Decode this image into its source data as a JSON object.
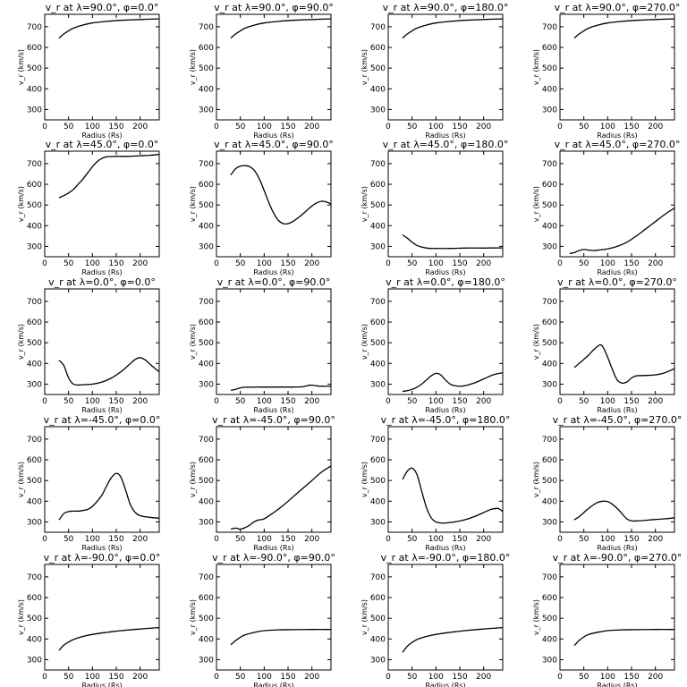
{
  "chart_data": [
    {
      "type": "line",
      "title": "v_r at λ=90.0°, φ=0.0°",
      "xlabel": "Radius (Rs)",
      "ylabel": "v_r (km/s)",
      "xlim": [
        0,
        240
      ],
      "ylim": [
        250,
        760
      ],
      "xticks": [
        0,
        50,
        100,
        150,
        200
      ],
      "yticks": [
        300,
        400,
        500,
        600,
        700
      ],
      "x": [
        30,
        40,
        50,
        60,
        80,
        100,
        130,
        160,
        200,
        240
      ],
      "y": [
        645,
        665,
        680,
        693,
        708,
        718,
        726,
        731,
        735,
        738
      ]
    },
    {
      "type": "line",
      "title": "v_r at λ=90.0°, φ=90.0°",
      "xlabel": "Radius (Rs)",
      "ylabel": "v_r (km/s)",
      "xlim": [
        0,
        240
      ],
      "ylim": [
        250,
        760
      ],
      "xticks": [
        0,
        50,
        100,
        150,
        200
      ],
      "yticks": [
        300,
        400,
        500,
        600,
        700
      ],
      "x": [
        30,
        40,
        50,
        60,
        80,
        100,
        130,
        160,
        200,
        240
      ],
      "y": [
        645,
        665,
        680,
        693,
        708,
        718,
        726,
        731,
        735,
        738
      ]
    },
    {
      "type": "line",
      "title": "v_r at λ=90.0°, φ=180.0°",
      "xlabel": "Radius (Rs)",
      "ylabel": "v_r (km/s)",
      "xlim": [
        0,
        240
      ],
      "ylim": [
        250,
        760
      ],
      "xticks": [
        0,
        50,
        100,
        150,
        200
      ],
      "yticks": [
        300,
        400,
        500,
        600,
        700
      ],
      "x": [
        30,
        40,
        50,
        60,
        80,
        100,
        130,
        160,
        200,
        240
      ],
      "y": [
        645,
        665,
        680,
        693,
        708,
        718,
        726,
        731,
        735,
        738
      ]
    },
    {
      "type": "line",
      "title": "v_r at λ=90.0°, φ=270.0°",
      "xlabel": "Radius (Rs)",
      "ylabel": "v_r (km/s)",
      "xlim": [
        0,
        240
      ],
      "ylim": [
        250,
        760
      ],
      "xticks": [
        0,
        50,
        100,
        150,
        200
      ],
      "yticks": [
        300,
        400,
        500,
        600,
        700
      ],
      "x": [
        30,
        40,
        50,
        60,
        80,
        100,
        130,
        160,
        200,
        240
      ],
      "y": [
        645,
        665,
        680,
        693,
        708,
        718,
        726,
        731,
        735,
        738
      ]
    },
    {
      "type": "line",
      "title": "v_r at λ=45.0°, φ=0.0°",
      "xlabel": "Radius (Rs)",
      "ylabel": "v_r (km/s)",
      "xlim": [
        0,
        240
      ],
      "ylim": [
        250,
        760
      ],
      "xticks": [
        0,
        50,
        100,
        150,
        200
      ],
      "yticks": [
        300,
        400,
        500,
        600,
        700
      ],
      "x": [
        30,
        40,
        50,
        60,
        70,
        80,
        90,
        100,
        110,
        120,
        130,
        150,
        175,
        200,
        220,
        240
      ],
      "y": [
        535,
        545,
        558,
        575,
        600,
        625,
        655,
        685,
        710,
        725,
        733,
        735,
        735,
        738,
        740,
        745
      ]
    },
    {
      "type": "line",
      "title": "v_r at λ=45.0°, φ=90.0°",
      "xlabel": "Radius (Rs)",
      "ylabel": "v_r (km/s)",
      "xlim": [
        0,
        240
      ],
      "ylim": [
        250,
        760
      ],
      "xticks": [
        0,
        50,
        100,
        150,
        200
      ],
      "yticks": [
        300,
        400,
        500,
        600,
        700
      ],
      "x": [
        30,
        40,
        50,
        60,
        70,
        80,
        90,
        100,
        110,
        120,
        130,
        140,
        150,
        160,
        175,
        190,
        200,
        210,
        220,
        230,
        240
      ],
      "y": [
        645,
        675,
        688,
        690,
        685,
        665,
        625,
        570,
        510,
        460,
        425,
        410,
        410,
        420,
        445,
        475,
        495,
        510,
        518,
        515,
        505
      ]
    },
    {
      "type": "line",
      "title": "v_r at λ=45.0°, φ=180.0°",
      "xlabel": "Radius (Rs)",
      "ylabel": "v_r (km/s)",
      "xlim": [
        0,
        240
      ],
      "ylim": [
        250,
        760
      ],
      "xticks": [
        0,
        50,
        100,
        150,
        200
      ],
      "yticks": [
        300,
        400,
        500,
        600,
        700
      ],
      "x": [
        30,
        40,
        50,
        60,
        70,
        80,
        90,
        100,
        130,
        160,
        200,
        240
      ],
      "y": [
        355,
        340,
        320,
        305,
        297,
        292,
        290,
        290,
        290,
        292,
        292,
        293
      ]
    },
    {
      "type": "line",
      "title": "v_r at λ=45.0°, φ=270.0°",
      "xlabel": "Radius (Rs)",
      "ylabel": "v_r (km/s)",
      "xlim": [
        0,
        240
      ],
      "ylim": [
        250,
        760
      ],
      "xticks": [
        0,
        50,
        100,
        150,
        200
      ],
      "yticks": [
        300,
        400,
        500,
        600,
        700
      ],
      "x": [
        20,
        30,
        40,
        50,
        60,
        70,
        80,
        100,
        120,
        140,
        160,
        180,
        200,
        220,
        240
      ],
      "y": [
        265,
        270,
        280,
        285,
        282,
        280,
        282,
        288,
        300,
        320,
        350,
        385,
        420,
        455,
        485
      ]
    },
    {
      "type": "line",
      "title": "v_r at λ=0.0°, φ=0.0°",
      "xlabel": "Radius (Rs)",
      "ylabel": "v_r (km/s)",
      "xlim": [
        0,
        240
      ],
      "ylim": [
        250,
        760
      ],
      "xticks": [
        0,
        50,
        100,
        150,
        200
      ],
      "yticks": [
        300,
        400,
        500,
        600,
        700
      ],
      "x": [
        30,
        40,
        50,
        60,
        70,
        80,
        100,
        120,
        140,
        160,
        175,
        190,
        200,
        210,
        220,
        230,
        240
      ],
      "y": [
        415,
        390,
        330,
        300,
        296,
        297,
        300,
        310,
        330,
        360,
        390,
        420,
        428,
        418,
        398,
        378,
        360
      ]
    },
    {
      "type": "line",
      "title": "v_r at λ=0.0°, φ=90.0°",
      "xlabel": "Radius (Rs)",
      "ylabel": "v_r (km/s)",
      "xlim": [
        0,
        240
      ],
      "ylim": [
        250,
        760
      ],
      "xticks": [
        0,
        50,
        100,
        150,
        200
      ],
      "yticks": [
        300,
        400,
        500,
        600,
        700
      ],
      "x": [
        30,
        40,
        50,
        60,
        80,
        100,
        130,
        160,
        180,
        190,
        200,
        210,
        220,
        240
      ],
      "y": [
        270,
        275,
        282,
        285,
        286,
        286,
        286,
        286,
        287,
        293,
        295,
        292,
        290,
        290
      ]
    },
    {
      "type": "line",
      "title": "v_r at λ=0.0°, φ=180.0°",
      "xlabel": "Radius (Rs)",
      "ylabel": "v_r (km/s)",
      "xlim": [
        0,
        240
      ],
      "ylim": [
        250,
        760
      ],
      "xticks": [
        0,
        50,
        100,
        150,
        200
      ],
      "yticks": [
        300,
        400,
        500,
        600,
        700
      ],
      "x": [
        30,
        40,
        50,
        60,
        70,
        80,
        90,
        100,
        110,
        120,
        130,
        140,
        150,
        160,
        180,
        200,
        220,
        240
      ],
      "y": [
        265,
        268,
        275,
        285,
        300,
        320,
        340,
        352,
        345,
        320,
        300,
        292,
        290,
        292,
        305,
        325,
        345,
        355
      ]
    },
    {
      "type": "line",
      "title": "v_r at λ=0.0°, φ=270.0°",
      "xlabel": "Radius (Rs)",
      "ylabel": "v_r (km/s)",
      "xlim": [
        0,
        240
      ],
      "ylim": [
        250,
        760
      ],
      "xticks": [
        0,
        50,
        100,
        150,
        200
      ],
      "yticks": [
        300,
        400,
        500,
        600,
        700
      ],
      "x": [
        30,
        40,
        50,
        60,
        70,
        80,
        85,
        90,
        100,
        110,
        120,
        130,
        140,
        150,
        160,
        180,
        200,
        220,
        240
      ],
      "y": [
        380,
        400,
        420,
        440,
        465,
        485,
        490,
        480,
        430,
        370,
        320,
        305,
        310,
        330,
        340,
        342,
        345,
        355,
        375
      ]
    },
    {
      "type": "line",
      "title": "v_r at λ=-45.0°, φ=0.0°",
      "xlabel": "Radius (Rs)",
      "ylabel": "v_r (km/s)",
      "xlim": [
        0,
        240
      ],
      "ylim": [
        250,
        760
      ],
      "xticks": [
        0,
        50,
        100,
        150,
        200
      ],
      "yticks": [
        300,
        400,
        500,
        600,
        700
      ],
      "x": [
        30,
        40,
        50,
        60,
        70,
        80,
        90,
        100,
        110,
        120,
        130,
        140,
        150,
        160,
        170,
        180,
        190,
        200,
        220,
        240
      ],
      "y": [
        310,
        340,
        350,
        352,
        352,
        355,
        360,
        375,
        400,
        430,
        475,
        515,
        535,
        515,
        450,
        380,
        345,
        330,
        322,
        318
      ]
    },
    {
      "type": "line",
      "title": "v_r at λ=-45.0°, φ=90.0°",
      "xlabel": "Radius (Rs)",
      "ylabel": "v_r (km/s)",
      "xlim": [
        0,
        240
      ],
      "ylim": [
        250,
        760
      ],
      "xticks": [
        0,
        50,
        100,
        150,
        200
      ],
      "yticks": [
        300,
        400,
        500,
        600,
        700
      ],
      "x": [
        30,
        40,
        50,
        60,
        70,
        80,
        90,
        100,
        120,
        140,
        160,
        180,
        200,
        220,
        240
      ],
      "y": [
        265,
        270,
        265,
        272,
        285,
        302,
        310,
        315,
        345,
        380,
        420,
        460,
        500,
        540,
        570
      ]
    },
    {
      "type": "line",
      "title": "v_r at λ=-45.0°, φ=180.0°",
      "xlabel": "Radius (Rs)",
      "ylabel": "v_r (km/s)",
      "xlim": [
        0,
        240
      ],
      "ylim": [
        250,
        760
      ],
      "xticks": [
        0,
        50,
        100,
        150,
        200
      ],
      "yticks": [
        300,
        400,
        500,
        600,
        700
      ],
      "x": [
        30,
        40,
        50,
        60,
        70,
        80,
        90,
        100,
        110,
        120,
        140,
        160,
        180,
        200,
        215,
        230,
        240
      ],
      "y": [
        505,
        545,
        560,
        530,
        450,
        370,
        320,
        300,
        295,
        295,
        300,
        310,
        325,
        345,
        360,
        365,
        350
      ]
    },
    {
      "type": "line",
      "title": "v_r at λ=-45.0°, φ=270.0°",
      "xlabel": "Radius (Rs)",
      "ylabel": "v_r (km/s)",
      "xlim": [
        0,
        240
      ],
      "ylim": [
        250,
        760
      ],
      "xticks": [
        0,
        50,
        100,
        150,
        200
      ],
      "yticks": [
        300,
        400,
        500,
        600,
        700
      ],
      "x": [
        30,
        40,
        50,
        60,
        70,
        80,
        90,
        100,
        110,
        120,
        130,
        140,
        150,
        160,
        180,
        200,
        220,
        240
      ],
      "y": [
        310,
        325,
        345,
        365,
        382,
        395,
        400,
        398,
        385,
        365,
        340,
        315,
        305,
        305,
        308,
        312,
        315,
        320
      ]
    },
    {
      "type": "line",
      "title": "v_r at λ=-90.0°, φ=0.0°",
      "xlabel": "Radius (Rs)",
      "ylabel": "v_r (km/s)",
      "xlim": [
        0,
        240
      ],
      "ylim": [
        250,
        760
      ],
      "xticks": [
        0,
        50,
        100,
        150,
        200
      ],
      "yticks": [
        300,
        400,
        500,
        600,
        700
      ],
      "x": [
        30,
        40,
        50,
        60,
        80,
        100,
        130,
        160,
        200,
        240
      ],
      "y": [
        345,
        370,
        385,
        397,
        412,
        422,
        432,
        440,
        448,
        455
      ]
    },
    {
      "type": "line",
      "title": "v_r at λ=-90.0°, φ=90.0°",
      "xlabel": "Radius (Rs)",
      "ylabel": "v_r (km/s)",
      "xlim": [
        0,
        240
      ],
      "ylim": [
        250,
        760
      ],
      "xticks": [
        0,
        50,
        100,
        150,
        200
      ],
      "yticks": [
        300,
        400,
        500,
        600,
        700
      ],
      "x": [
        30,
        40,
        50,
        60,
        80,
        100,
        130,
        160,
        200,
        240
      ],
      "y": [
        372,
        392,
        408,
        420,
        432,
        440,
        444,
        445,
        446,
        446
      ]
    },
    {
      "type": "line",
      "title": "v_r at λ=-90.0°, φ=180.0°",
      "xlabel": "Radius (Rs)",
      "ylabel": "v_r (km/s)",
      "xlim": [
        0,
        240
      ],
      "ylim": [
        250,
        760
      ],
      "xticks": [
        0,
        50,
        100,
        150,
        200
      ],
      "yticks": [
        300,
        400,
        500,
        600,
        700
      ],
      "x": [
        30,
        40,
        50,
        60,
        80,
        100,
        130,
        160,
        200,
        240
      ],
      "y": [
        335,
        365,
        383,
        397,
        412,
        422,
        432,
        440,
        448,
        455
      ]
    },
    {
      "type": "line",
      "title": "v_r at λ=-90.0°, φ=270.0°",
      "xlabel": "Radius (Rs)",
      "ylabel": "v_r (km/s)",
      "xlim": [
        0,
        240
      ],
      "ylim": [
        250,
        760
      ],
      "xticks": [
        0,
        50,
        100,
        150,
        200
      ],
      "yticks": [
        300,
        400,
        500,
        600,
        700
      ],
      "x": [
        30,
        40,
        50,
        60,
        80,
        100,
        130,
        160,
        200,
        240
      ],
      "y": [
        368,
        392,
        410,
        422,
        433,
        440,
        444,
        445,
        446,
        446
      ]
    }
  ]
}
